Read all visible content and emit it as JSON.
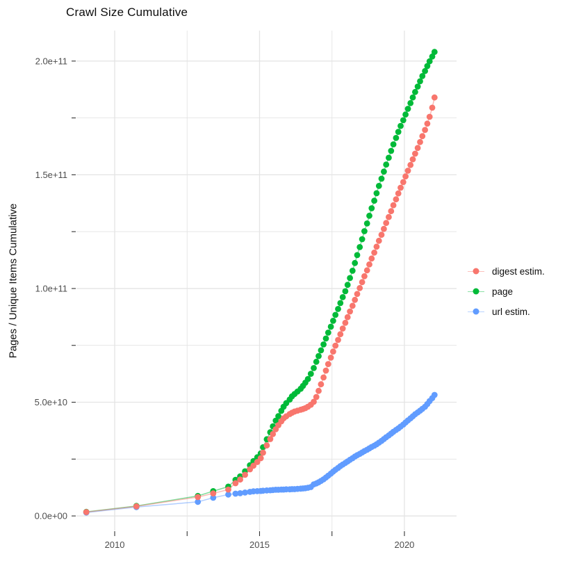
{
  "title": "Crawl Size Cumulative",
  "y_axis": {
    "label": "Pages / Unique Items Cumulative",
    "ticks": [
      "0.0e+00",
      "5.0e+10",
      "1.0e+11",
      "1.5e+11",
      "2.0e+11"
    ],
    "tick_values": [
      0,
      50,
      100,
      150,
      200
    ],
    "minor_values": [
      25,
      75,
      125,
      175
    ]
  },
  "x_axis": {
    "label": "",
    "ticks": [
      "2010",
      "2015",
      "2020"
    ],
    "tick_values": [
      2010,
      2015,
      2020
    ],
    "minor_values": [
      2012.5,
      2017.5
    ]
  },
  "legend": {
    "position": "right",
    "items": [
      {
        "label": "digest estim.",
        "color": "#F8766D"
      },
      {
        "label": "page",
        "color": "#00BA38"
      },
      {
        "label": "url estim.",
        "color": "#619CFF"
      }
    ]
  },
  "style": {
    "grid_color": "#E4E4E4",
    "tick_color": "#333333",
    "tick_label_color": "#4D4D4D",
    "background": "#FFFFFF",
    "point_radius": 4.4,
    "line_opacity": 0.5
  },
  "chart_data": {
    "type": "line",
    "title": "Crawl Size Cumulative",
    "xlabel": "",
    "ylabel": "Pages / Unique Items Cumulative",
    "value_unit": "1e9 (billions of pages / items)",
    "xlim": [
      2008.68,
      2021.8
    ],
    "ylim_billions": [
      -6.4,
      213.4
    ],
    "grid": true,
    "legend_position": "right",
    "series": [
      {
        "name": "page",
        "color": "#00BA38",
        "points": [
          [
            2009.02,
            1.8
          ],
          [
            2010.75,
            4.4
          ],
          [
            2012.87,
            8.8
          ],
          [
            2013.4,
            10.9
          ],
          [
            2013.92,
            12.9
          ],
          [
            2014.17,
            15.9
          ],
          [
            2014.33,
            17.4
          ],
          [
            2014.5,
            19.6
          ],
          [
            2014.67,
            22.3
          ],
          [
            2014.79,
            24.1
          ],
          [
            2014.92,
            25.8
          ],
          [
            2015.04,
            27.5
          ],
          [
            2015.12,
            30.2
          ],
          [
            2015.25,
            33.7
          ],
          [
            2015.37,
            36.8
          ],
          [
            2015.46,
            39.4
          ],
          [
            2015.56,
            41.9
          ],
          [
            2015.65,
            43.9
          ],
          [
            2015.75,
            46.2
          ],
          [
            2015.83,
            48.0
          ],
          [
            2015.92,
            49.6
          ],
          [
            2016.04,
            51.2
          ],
          [
            2016.12,
            52.6
          ],
          [
            2016.21,
            53.6
          ],
          [
            2016.31,
            54.7
          ],
          [
            2016.42,
            55.9
          ],
          [
            2016.5,
            57.2
          ],
          [
            2016.58,
            58.6
          ],
          [
            2016.67,
            60.2
          ],
          [
            2016.77,
            62.5
          ],
          [
            2016.87,
            65.0
          ],
          [
            2016.96,
            67.8
          ],
          [
            2017.04,
            70.3
          ],
          [
            2017.12,
            72.8
          ],
          [
            2017.21,
            75.4
          ],
          [
            2017.29,
            78.0
          ],
          [
            2017.37,
            80.6
          ],
          [
            2017.46,
            83.2
          ],
          [
            2017.54,
            85.8
          ],
          [
            2017.62,
            88.4
          ],
          [
            2017.71,
            91.0
          ],
          [
            2017.79,
            93.6
          ],
          [
            2017.87,
            96.2
          ],
          [
            2017.96,
            98.8
          ],
          [
            2018.04,
            101.6
          ],
          [
            2018.12,
            104.6
          ],
          [
            2018.21,
            107.8
          ],
          [
            2018.29,
            111.2
          ],
          [
            2018.37,
            114.7
          ],
          [
            2018.46,
            118.2
          ],
          [
            2018.54,
            121.7
          ],
          [
            2018.62,
            125.2
          ],
          [
            2018.71,
            128.6
          ],
          [
            2018.79,
            132.0
          ],
          [
            2018.87,
            135.3
          ],
          [
            2018.96,
            138.6
          ],
          [
            2019.04,
            141.9
          ],
          [
            2019.12,
            145.1
          ],
          [
            2019.21,
            148.3
          ],
          [
            2019.29,
            151.4
          ],
          [
            2019.37,
            154.5
          ],
          [
            2019.46,
            157.5
          ],
          [
            2019.54,
            160.5
          ],
          [
            2019.62,
            163.4
          ],
          [
            2019.71,
            166.2
          ],
          [
            2019.79,
            168.9
          ],
          [
            2019.87,
            171.5
          ],
          [
            2019.96,
            174.0
          ],
          [
            2020.04,
            176.5
          ],
          [
            2020.12,
            179.0
          ],
          [
            2020.21,
            181.5
          ],
          [
            2020.29,
            184.0
          ],
          [
            2020.37,
            186.4
          ],
          [
            2020.46,
            188.8
          ],
          [
            2020.54,
            191.1
          ],
          [
            2020.62,
            193.4
          ],
          [
            2020.71,
            195.6
          ],
          [
            2020.79,
            197.8
          ],
          [
            2020.87,
            199.9
          ],
          [
            2020.96,
            202.0
          ],
          [
            2021.04,
            204.0
          ]
        ]
      },
      {
        "name": "url estim.",
        "color": "#619CFF",
        "points": [
          [
            2009.02,
            1.5
          ],
          [
            2010.75,
            3.9
          ],
          [
            2012.87,
            6.2
          ],
          [
            2013.4,
            8.0
          ],
          [
            2013.92,
            9.4
          ],
          [
            2014.17,
            9.8
          ],
          [
            2014.33,
            10.0
          ],
          [
            2014.5,
            10.3
          ],
          [
            2014.67,
            10.6
          ],
          [
            2014.79,
            10.8
          ],
          [
            2014.92,
            10.9
          ],
          [
            2015.04,
            11.0
          ],
          [
            2015.12,
            11.1
          ],
          [
            2015.25,
            11.2
          ],
          [
            2015.37,
            11.3
          ],
          [
            2015.46,
            11.4
          ],
          [
            2015.56,
            11.5
          ],
          [
            2015.65,
            11.5
          ],
          [
            2015.75,
            11.6
          ],
          [
            2015.83,
            11.6
          ],
          [
            2015.92,
            11.7
          ],
          [
            2016.04,
            11.7
          ],
          [
            2016.12,
            11.8
          ],
          [
            2016.21,
            11.8
          ],
          [
            2016.31,
            11.9
          ],
          [
            2016.42,
            12.0
          ],
          [
            2016.5,
            12.1
          ],
          [
            2016.58,
            12.2
          ],
          [
            2016.67,
            12.4
          ],
          [
            2016.77,
            12.7
          ],
          [
            2016.87,
            13.9
          ],
          [
            2016.96,
            14.3
          ],
          [
            2017.04,
            14.8
          ],
          [
            2017.12,
            15.4
          ],
          [
            2017.21,
            16.1
          ],
          [
            2017.29,
            16.9
          ],
          [
            2017.37,
            17.7
          ],
          [
            2017.46,
            18.6
          ],
          [
            2017.54,
            19.5
          ],
          [
            2017.62,
            20.3
          ],
          [
            2017.71,
            21.1
          ],
          [
            2017.79,
            21.9
          ],
          [
            2017.87,
            22.6
          ],
          [
            2017.96,
            23.3
          ],
          [
            2018.04,
            24.0
          ],
          [
            2018.12,
            24.7
          ],
          [
            2018.21,
            25.4
          ],
          [
            2018.29,
            26.1
          ],
          [
            2018.37,
            26.7
          ],
          [
            2018.46,
            27.3
          ],
          [
            2018.54,
            27.9
          ],
          [
            2018.62,
            28.5
          ],
          [
            2018.71,
            29.1
          ],
          [
            2018.79,
            29.7
          ],
          [
            2018.87,
            30.3
          ],
          [
            2018.96,
            30.9
          ],
          [
            2019.04,
            31.5
          ],
          [
            2019.12,
            32.2
          ],
          [
            2019.21,
            33.0
          ],
          [
            2019.29,
            33.8
          ],
          [
            2019.37,
            34.6
          ],
          [
            2019.46,
            35.4
          ],
          [
            2019.54,
            36.2
          ],
          [
            2019.62,
            37.0
          ],
          [
            2019.71,
            37.8
          ],
          [
            2019.79,
            38.5
          ],
          [
            2019.87,
            39.3
          ],
          [
            2019.96,
            40.2
          ],
          [
            2020.04,
            41.1
          ],
          [
            2020.12,
            42.0
          ],
          [
            2020.21,
            42.9
          ],
          [
            2020.29,
            43.8
          ],
          [
            2020.37,
            44.7
          ],
          [
            2020.46,
            45.5
          ],
          [
            2020.54,
            46.3
          ],
          [
            2020.62,
            47.1
          ],
          [
            2020.71,
            48.0
          ],
          [
            2020.79,
            49.2
          ],
          [
            2020.87,
            50.5
          ],
          [
            2020.96,
            51.8
          ],
          [
            2021.04,
            53.2
          ]
        ]
      },
      {
        "name": "digest estim.",
        "color": "#F8766D",
        "points": [
          [
            2009.02,
            1.7
          ],
          [
            2010.75,
            4.2
          ],
          [
            2012.87,
            8.3
          ],
          [
            2013.4,
            9.9
          ],
          [
            2013.92,
            11.6
          ],
          [
            2014.17,
            14.4
          ],
          [
            2014.33,
            16.0
          ],
          [
            2014.5,
            18.1
          ],
          [
            2014.67,
            20.5
          ],
          [
            2014.79,
            22.1
          ],
          [
            2014.92,
            23.7
          ],
          [
            2015.04,
            25.4
          ],
          [
            2015.12,
            27.8
          ],
          [
            2015.25,
            31.0
          ],
          [
            2015.37,
            33.8
          ],
          [
            2015.46,
            36.0
          ],
          [
            2015.56,
            38.1
          ],
          [
            2015.65,
            39.9
          ],
          [
            2015.75,
            41.6
          ],
          [
            2015.83,
            42.9
          ],
          [
            2015.92,
            43.8
          ],
          [
            2016.04,
            44.8
          ],
          [
            2016.12,
            45.4
          ],
          [
            2016.21,
            45.9
          ],
          [
            2016.31,
            46.3
          ],
          [
            2016.42,
            46.7
          ],
          [
            2016.5,
            47.0
          ],
          [
            2016.58,
            47.4
          ],
          [
            2016.67,
            48.0
          ],
          [
            2016.77,
            48.9
          ],
          [
            2016.87,
            50.2
          ],
          [
            2016.96,
            52.3
          ],
          [
            2017.04,
            55.0
          ],
          [
            2017.12,
            57.9
          ],
          [
            2017.21,
            60.9
          ],
          [
            2017.29,
            63.9
          ],
          [
            2017.37,
            66.8
          ],
          [
            2017.46,
            69.6
          ],
          [
            2017.54,
            72.3
          ],
          [
            2017.62,
            74.9
          ],
          [
            2017.71,
            77.4
          ],
          [
            2017.79,
            79.9
          ],
          [
            2017.87,
            82.4
          ],
          [
            2017.96,
            84.9
          ],
          [
            2018.04,
            87.4
          ],
          [
            2018.12,
            89.9
          ],
          [
            2018.21,
            92.4
          ],
          [
            2018.29,
            95.0
          ],
          [
            2018.37,
            97.6
          ],
          [
            2018.46,
            100.2
          ],
          [
            2018.54,
            102.8
          ],
          [
            2018.62,
            105.4
          ],
          [
            2018.71,
            108.0
          ],
          [
            2018.79,
            110.6
          ],
          [
            2018.87,
            113.2
          ],
          [
            2018.96,
            115.8
          ],
          [
            2019.04,
            118.4
          ],
          [
            2019.12,
            121.0
          ],
          [
            2019.21,
            123.6
          ],
          [
            2019.29,
            126.2
          ],
          [
            2019.37,
            128.8
          ],
          [
            2019.46,
            131.4
          ],
          [
            2019.54,
            134.0
          ],
          [
            2019.62,
            136.6
          ],
          [
            2019.71,
            139.2
          ],
          [
            2019.79,
            141.8
          ],
          [
            2019.87,
            144.3
          ],
          [
            2019.96,
            146.8
          ],
          [
            2020.04,
            149.3
          ],
          [
            2020.12,
            151.8
          ],
          [
            2020.21,
            154.3
          ],
          [
            2020.29,
            156.8
          ],
          [
            2020.37,
            159.3
          ],
          [
            2020.46,
            161.8
          ],
          [
            2020.54,
            164.4
          ],
          [
            2020.62,
            167.0
          ],
          [
            2020.71,
            169.7
          ],
          [
            2020.79,
            172.5
          ],
          [
            2020.87,
            175.5
          ],
          [
            2020.96,
            179.5
          ],
          [
            2021.04,
            184.0
          ]
        ]
      }
    ]
  }
}
